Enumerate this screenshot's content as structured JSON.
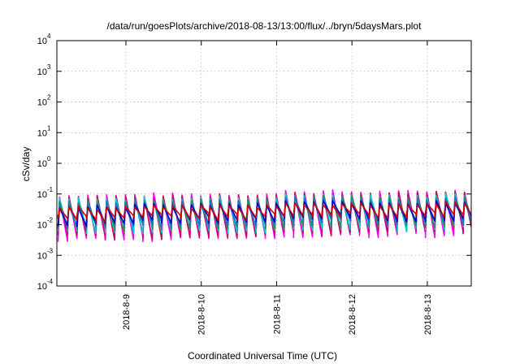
{
  "chart_data": {
    "type": "line",
    "title": "/data/run/goesPlots/archive/2018-08-13/13:00/flux/../bryn/5daysMars.plot",
    "xlabel": "Coordinated Universal Time (UTC)",
    "ylabel": "cSv/day",
    "y_scale": "log",
    "ylim": [
      0.0001,
      10000
    ],
    "xlim": [
      "2018-08-08 02:00",
      "2018-08-13 14:00"
    ],
    "x_ticks": [
      "2018-8-9",
      "2018-8-10",
      "2018-8-11",
      "2018-8-12",
      "2018-8-13"
    ],
    "y_ticks": [
      {
        "base": "10",
        "exp": "-4",
        "value": 0.0001
      },
      {
        "base": "10",
        "exp": "-3",
        "value": 0.001
      },
      {
        "base": "10",
        "exp": "-2",
        "value": 0.01
      },
      {
        "base": "10",
        "exp": "-1",
        "value": 0.1
      },
      {
        "base": "10",
        "exp": "0",
        "value": 1
      },
      {
        "base": "10",
        "exp": "1",
        "value": 10
      },
      {
        "base": "10",
        "exp": "2",
        "value": 100
      },
      {
        "base": "10",
        "exp": "3",
        "value": 1000
      },
      {
        "base": "10",
        "exp": "4",
        "value": 10000
      }
    ],
    "grid": true,
    "series_colors": [
      "#ff00ff",
      "#cc0066",
      "#00cccc",
      "#2e8b57",
      "#1e6fd0",
      "#0000cc",
      "#d00000"
    ],
    "pattern": {
      "cycles_per_day": 8,
      "cycle_start_day_offset": 0.1,
      "rise_fraction": 0.15,
      "series_peaks": [
        0.1,
        0.09,
        0.075,
        0.065,
        0.055,
        0.045,
        0.04
      ],
      "series_troughs": [
        0.004,
        0.005,
        0.007,
        0.009,
        0.011,
        0.014,
        0.018
      ],
      "daily_level_factor": [
        0.9,
        0.95,
        1.0,
        1.2,
        1.15,
        1.25
      ]
    }
  }
}
